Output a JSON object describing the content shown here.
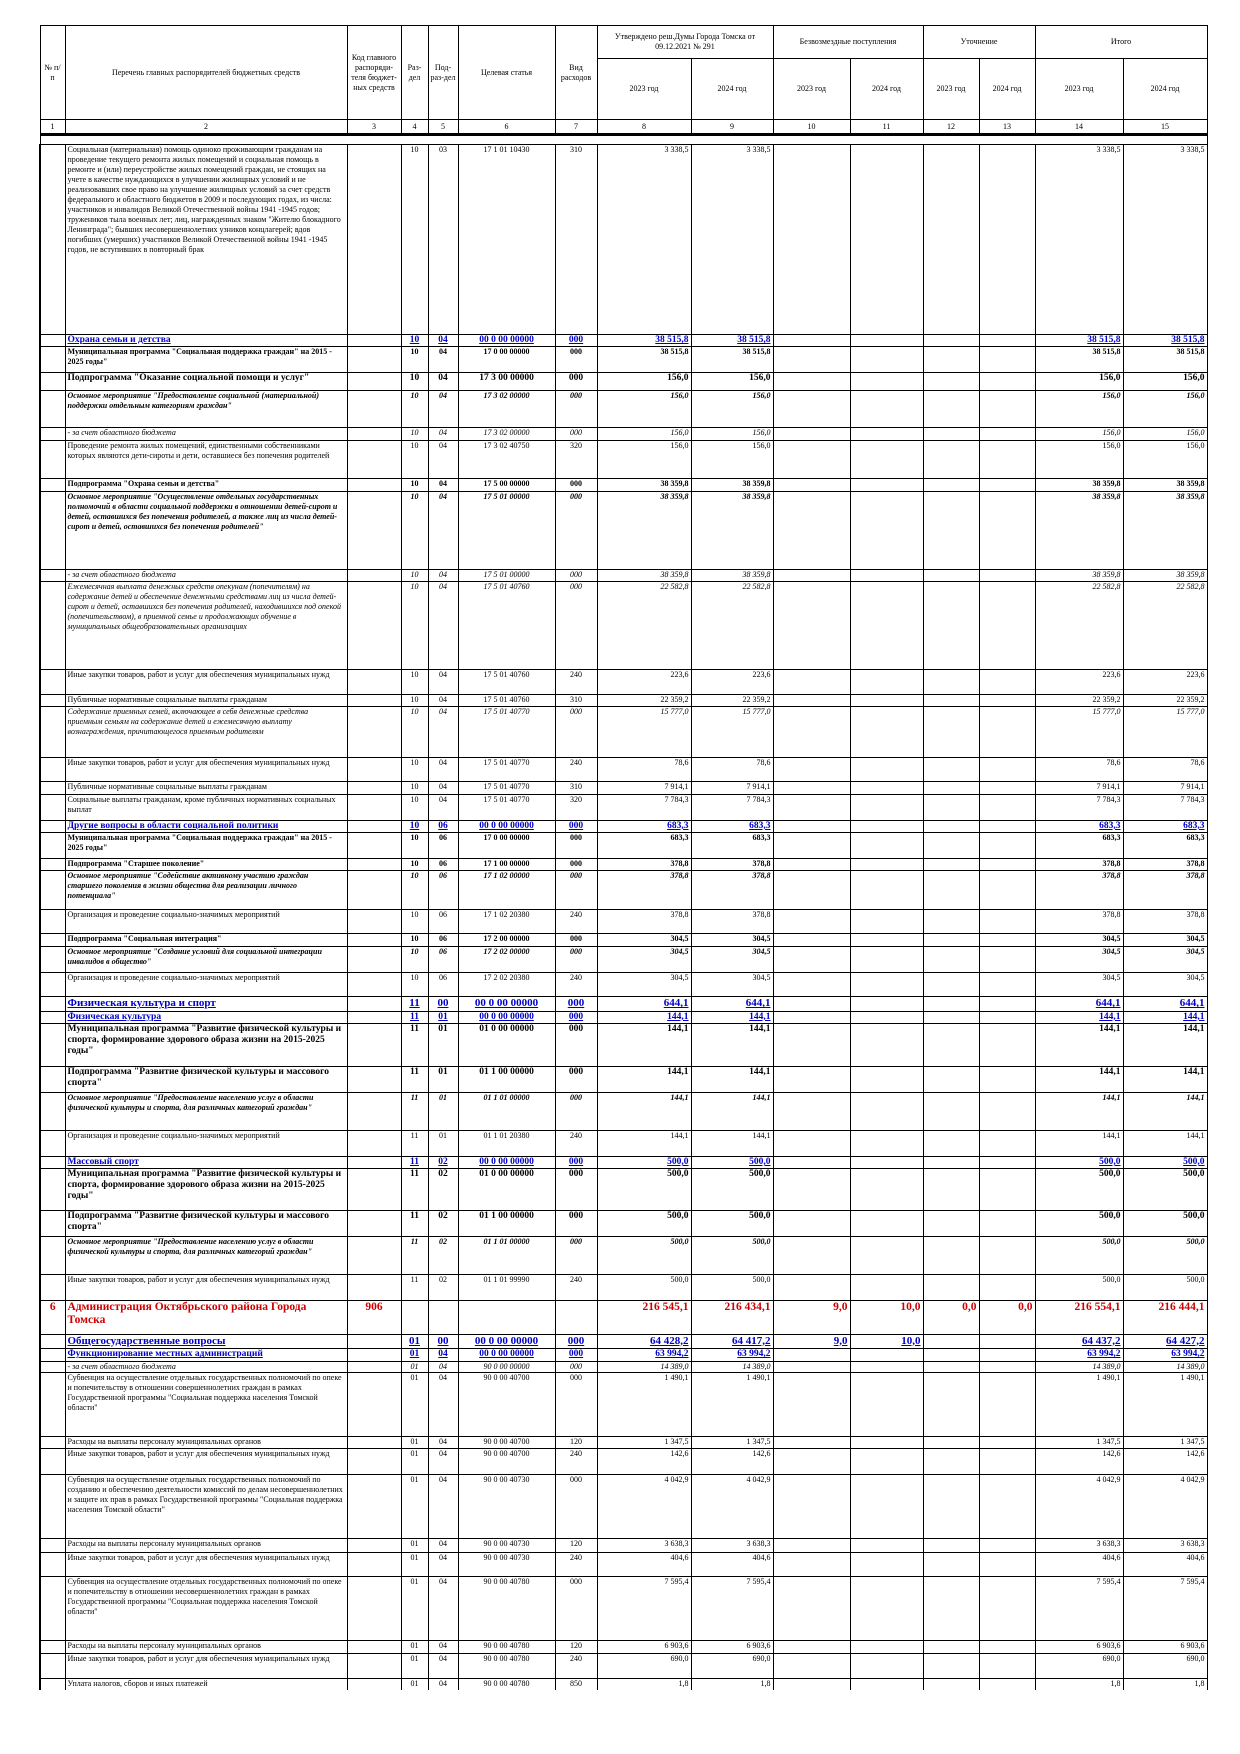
{
  "header": {
    "num": "№ п/п",
    "name": "Перечень главных распорядителей бюджетных средств",
    "code": "Код главного распоряди-теля бюджет-ных средств",
    "razdel": "Раз-дел",
    "podrazdel": "Под-раз-дел",
    "statya": "Целевая статья",
    "vid": "Вид расходов",
    "approved": "Утверждено реш.Думы Города Томска от 09.12.2021 № 291",
    "grants": "Безвозмездные поступления",
    "clarification": "Уточнение",
    "total": "Итого",
    "years": [
      "2023 год",
      "2024 год",
      "2023 год",
      "2024 год",
      "2023 год",
      "2024 год",
      "2023 год",
      "2024 год"
    ],
    "col_numbers": [
      1,
      2,
      3,
      4,
      5,
      6,
      7,
      8,
      9,
      10,
      11,
      12,
      13,
      14,
      15
    ]
  },
  "rows": [
    [
      null,
      "Социальная (материальная) помощь одиноко проживающим гражданам на проведение текущего ремонта жилых помещений и социальная помощь в ремонте и (или) переустройстве жилых помещений граждан, не стоящих на учете в качестве нуждающихся в улучшении жилищных условий и не реализовавших свое право на улучшение жилищных условий за счет средств федерального и областного бюджетов в 2009 и последующих годах, из числа: участников и инвалидов Великой Отечественной войны 1941 -1945 годов; тружеников тыла военных лет; лиц, награжденных знаком \"Жителю блокадного Ленинграда\"; бывших несовершеннолетних узников концлагерей; вдов погибших (умерших) участников Великой Отечественной войны 1941 -1945 годов, не вступивших в повторный брак",
      null,
      "10",
      "03",
      "17 1 01 10430",
      "310",
      "3 338,5",
      "3 338,5",
      null,
      null,
      null,
      null,
      "3 338,5",
      "3 338,5"
    ],
    [
      null,
      "Охрана семьи и детства",
      null,
      "10",
      "04",
      "00 0 00 00000",
      "000",
      "38 515,8",
      "38 515,8",
      null,
      null,
      null,
      null,
      "38 515,8",
      "38 515,8"
    ],
    [
      null,
      "Муниципальная программа \"Социальная поддержка граждан\" на 2015 - 2025 годы\"",
      null,
      "10",
      "04",
      "17 0 00 00000",
      "000",
      "38 515,8",
      "38 515,8",
      null,
      null,
      null,
      null,
      "38 515,8",
      "38 515,8"
    ],
    [
      null,
      "Подпрограмма \"Оказание социальной помощи и услуг\"",
      null,
      "10",
      "04",
      "17 3 00 00000",
      "000",
      "156,0",
      "156,0",
      null,
      null,
      null,
      null,
      "156,0",
      "156,0"
    ],
    [
      null,
      "Основное мероприятие \"Предоставление социальной (материальной) поддержки отдельным категориям граждан\"",
      null,
      "10",
      "04",
      "17 3 02 00000",
      "000",
      "156,0",
      "156,0",
      null,
      null,
      null,
      null,
      "156,0",
      "156,0"
    ],
    [
      null,
      "- за счет областного бюджета",
      null,
      "10",
      "04",
      "17 3 02 00000",
      "000",
      "156,0",
      "156,0",
      null,
      null,
      null,
      null,
      "156,0",
      "156,0"
    ],
    [
      null,
      "Проведение ремонта жилых помещений, единственными собственниками которых являются дети-сироты и дети, оставшиеся без попечения родителей",
      null,
      "10",
      "04",
      "17 3 02 40750",
      "320",
      "156,0",
      "156,0",
      null,
      null,
      null,
      null,
      "156,0",
      "156,0"
    ],
    [
      null,
      "Подпрограмма \"Охрана семьи и детства\"",
      null,
      "10",
      "04",
      "17 5 00 00000",
      "000",
      "38 359,8",
      "38 359,8",
      null,
      null,
      null,
      null,
      "38 359,8",
      "38 359,8"
    ],
    [
      null,
      "Основное мероприятие \"Осуществление отдельных государственных полномочий в области социальной поддержки в отношении детей-сирот и детей, оставшихся без попечения родителей, а также лиц из числа детей-сирот и детей, оставшихся без попечения родителей\"",
      null,
      "10",
      "04",
      "17 5 01 00000",
      "000",
      "38 359,8",
      "38 359,8",
      null,
      null,
      null,
      null,
      "38 359,8",
      "38 359,8"
    ],
    [
      null,
      "- за счет областного бюджета",
      null,
      "10",
      "04",
      "17 5 01 00000",
      "000",
      "38 359,8",
      "38 359,8",
      null,
      null,
      null,
      null,
      "38 359,8",
      "38 359,8"
    ],
    [
      null,
      "Ежемесячная выплата денежных средств опекунам (попечителям) на содержание детей и обеспечение денежными средствами лиц из числа детей-сирот и детей, оставшихся без попечения родителей, находившихся под опекой (попечительством), в приемной семье и продолжающих обучение в муниципальных общеобразовательных организациях",
      null,
      "10",
      "04",
      "17 5 01 40760",
      "000",
      "22 582,8",
      "22 582,8",
      null,
      null,
      null,
      null,
      "22 582,8",
      "22 582,8"
    ],
    [
      null,
      "Иные закупки товаров, работ и услуг для обеспечения муниципальных нужд",
      null,
      "10",
      "04",
      "17 5 01 40760",
      "240",
      "223,6",
      "223,6",
      null,
      null,
      null,
      null,
      "223,6",
      "223,6"
    ],
    [
      null,
      "Публичные нормативные социальные выплаты гражданам",
      null,
      "10",
      "04",
      "17 5 01 40760",
      "310",
      "22 359,2",
      "22 359,2",
      null,
      null,
      null,
      null,
      "22 359,2",
      "22 359,2"
    ],
    [
      null,
      "Содержание приемных семей, включающее в себя денежные средства приемным семьям на содержание детей и ежемесячную выплату вознаграждения, причитающегося приемным родителям",
      null,
      "10",
      "04",
      "17 5 01 40770",
      "000",
      "15 777,0",
      "15 777,0",
      null,
      null,
      null,
      null,
      "15 777,0",
      "15 777,0"
    ],
    [
      null,
      "Иные закупки товаров, работ и услуг для обеспечения муниципальных нужд",
      null,
      "10",
      "04",
      "17 5 01 40770",
      "240",
      "78,6",
      "78,6",
      null,
      null,
      null,
      null,
      "78,6",
      "78,6"
    ],
    [
      null,
      "Публичные нормативные социальные выплаты гражданам",
      null,
      "10",
      "04",
      "17 5 01 40770",
      "310",
      "7 914,1",
      "7 914,1",
      null,
      null,
      null,
      null,
      "7 914,1",
      "7 914,1"
    ],
    [
      null,
      "Социальные выплаты гражданам, кроме публичных нормативных социальных выплат",
      null,
      "10",
      "04",
      "17 5 01 40770",
      "320",
      "7 784,3",
      "7 784,3",
      null,
      null,
      null,
      null,
      "7 784,3",
      "7 784,3"
    ],
    [
      null,
      "Другие вопросы в области социальной политики",
      null,
      "10",
      "06",
      "00 0 00 00000",
      "000",
      "683,3",
      "683,3",
      null,
      null,
      null,
      null,
      "683,3",
      "683,3"
    ],
    [
      null,
      "Муниципальная программа \"Социальная поддержка граждан\" на 2015 - 2025 годы\"",
      null,
      "10",
      "06",
      "17 0 00 00000",
      "000",
      "683,3",
      "683,3",
      null,
      null,
      null,
      null,
      "683,3",
      "683,3"
    ],
    [
      null,
      "Подпрограмма \"Старшее поколение\"",
      null,
      "10",
      "06",
      "17 1 00 00000",
      "000",
      "378,8",
      "378,8",
      null,
      null,
      null,
      null,
      "378,8",
      "378,8"
    ],
    [
      null,
      "Основное мероприятие \"Содействие активному участию граждан старшего поколения в жизни общества для реализации личного потенциала\"",
      null,
      "10",
      "06",
      "17 1 02 00000",
      "000",
      "378,8",
      "378,8",
      null,
      null,
      null,
      null,
      "378,8",
      "378,8"
    ],
    [
      null,
      "Организация и проведение социально-значимых мероприятий",
      null,
      "10",
      "06",
      "17 1 02 20380",
      "240",
      "378,8",
      "378,8",
      null,
      null,
      null,
      null,
      "378,8",
      "378,8"
    ],
    [
      null,
      "Подпрограмма \"Социальная интеграция\"",
      null,
      "10",
      "06",
      "17 2 00 00000",
      "000",
      "304,5",
      "304,5",
      null,
      null,
      null,
      null,
      "304,5",
      "304,5"
    ],
    [
      null,
      "Основное мероприятие \"Создание условий для социальной интеграции инвалидов в общество\"",
      null,
      "10",
      "06",
      "17 2 02 00000",
      "000",
      "304,5",
      "304,5",
      null,
      null,
      null,
      null,
      "304,5",
      "304,5"
    ],
    [
      null,
      "Организация и проведение социально-значимых мероприятий",
      null,
      "10",
      "06",
      "17 2 02 20380",
      "240",
      "304,5",
      "304,5",
      null,
      null,
      null,
      null,
      "304,5",
      "304,5"
    ],
    [
      null,
      "Физическая культура и спорт",
      null,
      "11",
      "00",
      "00 0 00 00000",
      "000",
      "644,1",
      "644,1",
      null,
      null,
      null,
      null,
      "644,1",
      "644,1"
    ],
    [
      null,
      "Физическая культура",
      null,
      "11",
      "01",
      "00 0 00 00000",
      "000",
      "144,1",
      "144,1",
      null,
      null,
      null,
      null,
      "144,1",
      "144,1"
    ],
    [
      null,
      "Муниципальная программа \"Развитие физической культуры и спорта, формирование здорового образа жизни на 2015-2025 годы\"",
      null,
      "11",
      "01",
      "01 0 00 00000",
      "000",
      "144,1",
      "144,1",
      null,
      null,
      null,
      null,
      "144,1",
      "144,1"
    ],
    [
      null,
      "Подпрограмма \"Развитие физической культуры и массового спорта\"",
      null,
      "11",
      "01",
      "01 1 00 00000",
      "000",
      "144,1",
      "144,1",
      null,
      null,
      null,
      null,
      "144,1",
      "144,1"
    ],
    [
      null,
      "Основное мероприятие \"Предоставление населению услуг в области физической культуры и спорта, для различных категорий граждан\"",
      null,
      "11",
      "01",
      "01 1 01 00000",
      "000",
      "144,1",
      "144,1",
      null,
      null,
      null,
      null,
      "144,1",
      "144,1"
    ],
    [
      null,
      "Организация и проведение социально-значимых мероприятий",
      null,
      "11",
      "01",
      "01 1 01 20380",
      "240",
      "144,1",
      "144,1",
      null,
      null,
      null,
      null,
      "144,1",
      "144,1"
    ],
    [
      null,
      "Массовый спорт",
      null,
      "11",
      "02",
      "00 0 00 00000",
      "000",
      "500,0",
      "500,0",
      null,
      null,
      null,
      null,
      "500,0",
      "500,0"
    ],
    [
      null,
      "Муниципальная программа \"Развитие физической культуры и спорта, формирование здорового образа жизни на 2015-2025 годы\"",
      null,
      "11",
      "02",
      "01 0 00 00000",
      "000",
      "500,0",
      "500,0",
      null,
      null,
      null,
      null,
      "500,0",
      "500,0"
    ],
    [
      null,
      "Подпрограмма \"Развитие физической культуры и массового спорта\"",
      null,
      "11",
      "02",
      "01 1 00 00000",
      "000",
      "500,0",
      "500,0",
      null,
      null,
      null,
      null,
      "500,0",
      "500,0"
    ],
    [
      null,
      "Основное мероприятие \"Предоставление населению услуг в области физической культуры и спорта, для различных категорий граждан\"",
      null,
      "11",
      "02",
      "01 1 01 00000",
      "000",
      "500,0",
      "500,0",
      null,
      null,
      null,
      null,
      "500,0",
      "500,0"
    ],
    [
      null,
      "Иные закупки товаров, работ и услуг для обеспечения муниципальных нужд",
      null,
      "11",
      "02",
      "01 1 01 99990",
      "240",
      "500,0",
      "500,0",
      null,
      null,
      null,
      null,
      "500,0",
      "500,0"
    ],
    [
      "6",
      "Администрация Октябрьского района Города Томска",
      "906",
      null,
      null,
      null,
      null,
      "216 545,1",
      "216 434,1",
      "9,0",
      "10,0",
      "0,0",
      "0,0",
      "216 554,1",
      "216 444,1"
    ],
    [
      null,
      "Общегосударственные вопросы",
      null,
      "01",
      "00",
      "00 0 00 00000",
      "000",
      "64 428,2",
      "64 417,2",
      "9,0",
      "10,0",
      null,
      null,
      "64 437,2",
      "64 427,2"
    ],
    [
      null,
      "Функционирование местных администраций",
      null,
      "01",
      "04",
      "00 0 00 00000",
      "000",
      "63 994,2",
      "63 994,2",
      null,
      null,
      null,
      null,
      "63 994,2",
      "63 994,2"
    ],
    [
      null,
      "- за счет областного бюджета",
      null,
      "01",
      "04",
      "90 0 00 00000",
      "000",
      "14 389,0",
      "14 389,0",
      null,
      null,
      null,
      null,
      "14 389,0",
      "14 389,0"
    ],
    [
      null,
      "Субвенция на осуществление отдельных государственных полномочий по опеке и попечительству в отношении совершеннолетних граждан в рамках Государственной программы \"Социальная поддержка населения Томской области\"",
      null,
      "01",
      "04",
      "90 0 00 40700",
      "000",
      "1 490,1",
      "1 490,1",
      null,
      null,
      null,
      null,
      "1 490,1",
      "1 490,1"
    ],
    [
      null,
      "Расходы на выплаты персоналу муниципальных органов",
      null,
      "01",
      "04",
      "90 0 00 40700",
      "120",
      "1 347,5",
      "1 347,5",
      null,
      null,
      null,
      null,
      "1 347,5",
      "1 347,5"
    ],
    [
      null,
      "Иные закупки товаров, работ и услуг для обеспечения муниципальных нужд",
      null,
      "01",
      "04",
      "90 0 00 40700",
      "240",
      "142,6",
      "142,6",
      null,
      null,
      null,
      null,
      "142,6",
      "142,6"
    ],
    [
      null,
      "Субвенция на осуществление отдельных государственных полномочий по созданию и обеспечению деятельности комиссий по делам несовершеннолетних и защите их прав в рамках Государственной программы \"Социальная поддержка населения Томской области\"",
      null,
      "01",
      "04",
      "90 0 00 40730",
      "000",
      "4 042,9",
      "4 042,9",
      null,
      null,
      null,
      null,
      "4 042,9",
      "4 042,9"
    ],
    [
      null,
      "Расходы на выплаты персоналу муниципальных органов",
      null,
      "01",
      "04",
      "90 0 00 40730",
      "120",
      "3 638,3",
      "3 638,3",
      null,
      null,
      null,
      null,
      "3 638,3",
      "3 638,3"
    ],
    [
      null,
      "Иные закупки товаров, работ и услуг для обеспечения муниципальных нужд",
      null,
      "01",
      "04",
      "90 0 00 40730",
      "240",
      "404,6",
      "404,6",
      null,
      null,
      null,
      null,
      "404,6",
      "404,6"
    ],
    [
      null,
      "Субвенция на осуществление отдельных государственных полномочий по опеке и попечительству в отношении несовершеннолетних граждан в рамках Государственной программы \"Социальная поддержка населения Томской области\"",
      null,
      "01",
      "04",
      "90 0 00 40780",
      "000",
      "7 595,4",
      "7 595,4",
      null,
      null,
      null,
      null,
      "7 595,4",
      "7 595,4"
    ],
    [
      null,
      "Расходы на выплаты персоналу муниципальных органов",
      null,
      "01",
      "04",
      "90 0 00 40780",
      "120",
      "6 903,6",
      "6 903,6",
      null,
      null,
      null,
      null,
      "6 903,6",
      "6 903,6"
    ],
    [
      null,
      "Иные закупки товаров, работ и услуг для обеспечения муниципальных нужд",
      null,
      "01",
      "04",
      "90 0 00 40780",
      "240",
      "690,0",
      "690,0",
      null,
      null,
      null,
      null,
      "690,0",
      "690,0"
    ],
    [
      null,
      "Уплата налогов, сборов и иных платежей",
      null,
      "01",
      "04",
      "90 0 00 40780",
      "850",
      "1,8",
      "1,8",
      null,
      null,
      null,
      null,
      "1,8",
      "1,8"
    ]
  ]
}
